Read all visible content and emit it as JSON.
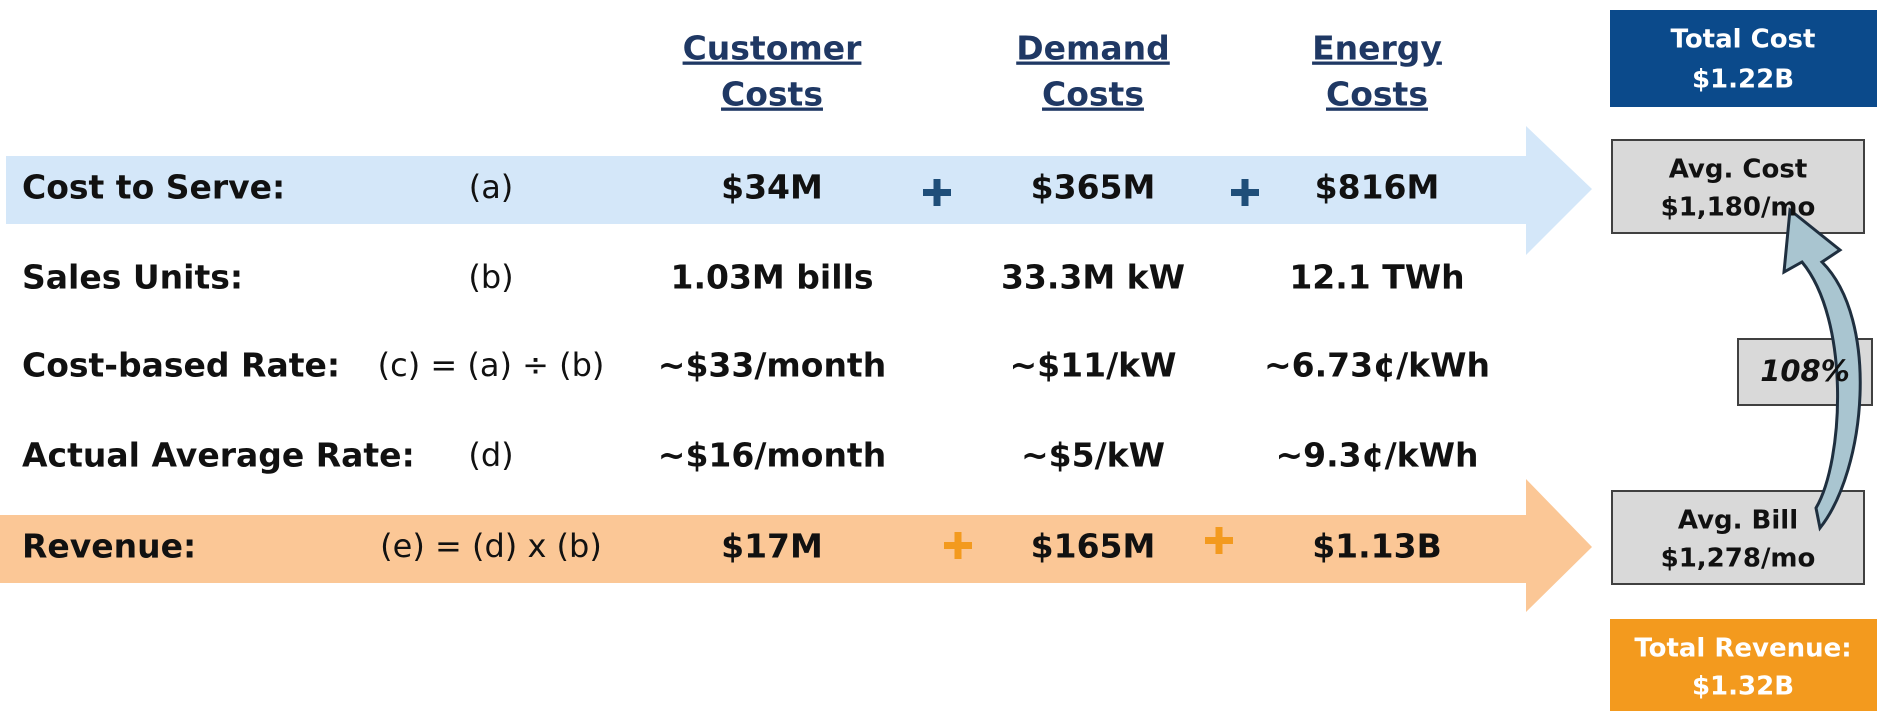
{
  "headers": [
    {
      "line1": "Customer",
      "line2": "Costs"
    },
    {
      "line1": "Demand",
      "line2": "Costs"
    },
    {
      "line1": "Energy",
      "line2": "Costs"
    }
  ],
  "rows": [
    {
      "label": "Cost to Serve:",
      "formula": "(a)",
      "values": [
        "$34M",
        "$365M",
        "$816M"
      ]
    },
    {
      "label": "Sales Units:",
      "formula": "(b)",
      "values": [
        "1.03M bills",
        "33.3M kW",
        "12.1 TWh"
      ]
    },
    {
      "label": "Cost-based Rate:",
      "formula": "(c) = (a) ÷ (b)",
      "values": [
        "~$33/month",
        "~$11/kW",
        "~6.73¢/kWh"
      ]
    },
    {
      "label": "Actual Average Rate:",
      "formula": "(d)",
      "values": [
        "~$16/month",
        "~$5/kW",
        "~9.3¢/kWh"
      ]
    },
    {
      "label": "Revenue:",
      "formula": "(e) = (d) x (b)",
      "values": [
        "$17M",
        "$165M",
        "$1.13B"
      ]
    }
  ],
  "summary": {
    "total_cost": {
      "label": "Total Cost",
      "value": "$1.22B"
    },
    "avg_cost": {
      "label": "Avg. Cost",
      "value": "$1,180/mo"
    },
    "ratio": "108%",
    "avg_bill": {
      "label": "Avg. Bill",
      "value": "$1,278/mo"
    },
    "total_revenue": {
      "label": "Total Revenue:",
      "value": "$1.32B"
    }
  }
}
